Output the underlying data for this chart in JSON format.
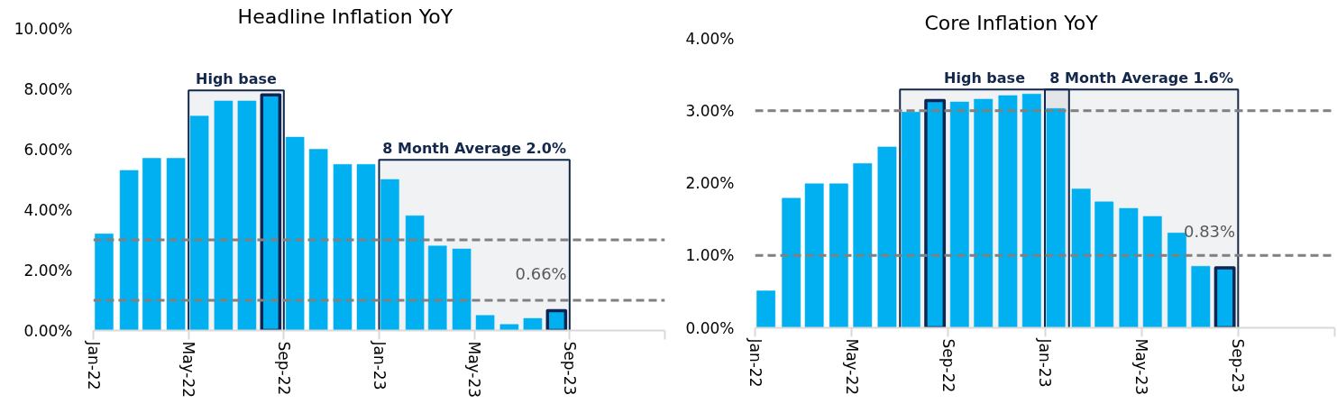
{
  "chart_data": [
    {
      "type": "bar",
      "title": "Headline Inflation YoY",
      "x": [
        "2022-01-15",
        "2022-02-15",
        "2022-03-15",
        "2022-04-15",
        "2022-05-15",
        "2022-06-15",
        "2022-07-15",
        "2022-08-15",
        "2022-09-15",
        "2022-10-15",
        "2022-11-15",
        "2022-12-15",
        "2023-01-15",
        "2023-02-15",
        "2023-03-15",
        "2023-04-15",
        "2023-05-15",
        "2023-06-15",
        "2023-07-15",
        "2023-08-15"
      ],
      "series": [
        {
          "color": "#00b0f0",
          "values": [
            3.2,
            5.3,
            5.7,
            5.7,
            7.1,
            7.6,
            7.6,
            null,
            6.4,
            6.0,
            5.5,
            5.5,
            5.0,
            3.8,
            2.8,
            2.7,
            0.5,
            0.2,
            0.4,
            null
          ]
        },
        {
          "color": "#00b0f0",
          "values": [
            null,
            null,
            null,
            null,
            null,
            null,
            null,
            7.8,
            null,
            null,
            null,
            null,
            null,
            null,
            null,
            null,
            null,
            null,
            null,
            0.66
          ],
          "value_labels": [
            null,
            null,
            null,
            null,
            null,
            null,
            null,
            null,
            null,
            null,
            null,
            null,
            null,
            null,
            null,
            null,
            null,
            null,
            null,
            "0.66%"
          ]
        }
      ],
      "xlim": [
        "2022-01",
        "2024-01"
      ],
      "xticks": [
        {
          "value": "2022-01",
          "label": "Jan-22"
        },
        {
          "value": "2022-05",
          "label": "May-22"
        },
        {
          "value": "2022-09",
          "label": "Sep-22"
        },
        {
          "value": "2023-01",
          "label": "Jan-23"
        },
        {
          "value": "2023-05",
          "label": "May-23"
        },
        {
          "value": "2023-09",
          "label": "Sep-23"
        },
        {
          "value": "2024-01",
          "label": null
        }
      ],
      "ylim": [
        0,
        10
      ],
      "yticks": [
        {
          "value": 0,
          "label": "0.00%"
        },
        {
          "value": 2,
          "label": "2.00%"
        },
        {
          "value": 4,
          "label": "4.00%"
        },
        {
          "value": 6,
          "label": "6.00%"
        },
        {
          "value": 8,
          "label": "8.00%"
        },
        {
          "value": 10,
          "label": "10.00%"
        }
      ],
      "ref_lines": [
        {
          "axis": "y",
          "value": 3,
          "color": "#808080",
          "line_style": "dashed"
        },
        {
          "axis": "y",
          "value": 1,
          "color": "#808080",
          "line_style": "dashed"
        }
      ],
      "bands": [
        {
          "axis": "x",
          "from": "2022-05-01",
          "to": "2022-09-01",
          "label": "High base",
          "color": "#14284b"
        },
        {
          "axis": "x",
          "from": "2023-01-01",
          "to": "2023-09-01",
          "label": "8 Month Average 2.0%",
          "color": "#14284b"
        }
      ]
    },
    {
      "type": "bar",
      "title": "Core Inflation YoY",
      "x": [
        "2022-01-15",
        "2022-02-15",
        "2022-03-15",
        "2022-04-15",
        "2022-05-15",
        "2022-06-15",
        "2022-07-15",
        "2022-08-15",
        "2022-09-15",
        "2022-10-15",
        "2022-11-15",
        "2022-12-15",
        "2023-01-15",
        "2023-02-15",
        "2023-03-15",
        "2023-04-15",
        "2023-05-15",
        "2023-06-15",
        "2023-07-15",
        "2023-08-15"
      ],
      "series": [
        {
          "color": "#00b0f0",
          "values": [
            0.51,
            1.79,
            1.99,
            1.99,
            2.27,
            2.5,
            2.98,
            null,
            3.12,
            3.16,
            3.21,
            3.23,
            3.03,
            1.92,
            1.74,
            1.65,
            1.54,
            1.31,
            0.85,
            null
          ]
        },
        {
          "color": "#00b0f0",
          "values": [
            null,
            null,
            null,
            null,
            null,
            null,
            null,
            3.14,
            null,
            null,
            null,
            null,
            null,
            null,
            null,
            null,
            null,
            null,
            null,
            0.83
          ],
          "value_labels": [
            null,
            null,
            null,
            null,
            null,
            null,
            null,
            null,
            null,
            null,
            null,
            null,
            null,
            null,
            null,
            null,
            null,
            null,
            null,
            "0.83%"
          ]
        }
      ],
      "xlim": [
        "2022-01",
        "2024-01"
      ],
      "xticks": [
        {
          "value": "2022-01",
          "label": "Jan-22"
        },
        {
          "value": "2022-05",
          "label": "May-22"
        },
        {
          "value": "2022-09",
          "label": "Sep-22"
        },
        {
          "value": "2023-01",
          "label": "Jan-23"
        },
        {
          "value": "2023-05",
          "label": "May-23"
        },
        {
          "value": "2023-09",
          "label": "Sep-23"
        },
        {
          "value": "2024-01",
          "label": null
        }
      ],
      "ylim": [
        0,
        4
      ],
      "yticks": [
        {
          "value": 0,
          "label": "0.00%"
        },
        {
          "value": 1,
          "label": "1.00%"
        },
        {
          "value": 2,
          "label": "2.00%"
        },
        {
          "value": 3,
          "label": "3.00%"
        },
        {
          "value": 4,
          "label": "4.00%"
        }
      ],
      "ref_lines": [
        {
          "axis": "y",
          "value": 3,
          "color": "#808080",
          "line_style": "dashed"
        },
        {
          "axis": "y",
          "value": 1,
          "color": "#808080",
          "line_style": "dashed"
        }
      ],
      "bands": [
        {
          "axis": "x",
          "from": "2022-07-01",
          "to": "2023-02-01",
          "label": "High base",
          "color": "#14284b"
        },
        {
          "axis": "x",
          "from": "2023-01-01",
          "to": "2023-09-01",
          "label": "8 Month Average 1.6%",
          "color": "#14284b"
        }
      ]
    }
  ]
}
